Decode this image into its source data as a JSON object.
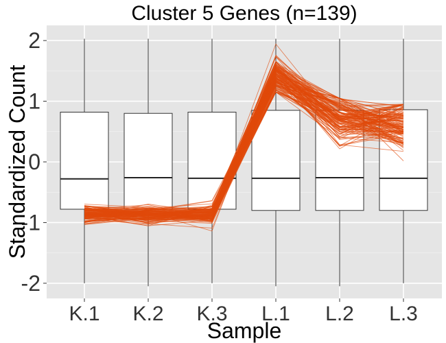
{
  "chart_data": {
    "type": "boxplot-with-lines",
    "title": "Cluster 5 Genes (n=139)",
    "xlabel": "Sample",
    "ylabel": "Standardized Count",
    "categories": [
      "K.1",
      "K.2",
      "K.3",
      "L.1",
      "L.2",
      "L.3"
    ],
    "ylim": [
      -2.25,
      2.25
    ],
    "yticks": [
      -2,
      -1,
      0,
      1,
      2
    ],
    "ytick_labels": [
      "-2",
      "-1",
      "0",
      "1",
      "2"
    ],
    "grid": true,
    "boxes": [
      {
        "category": "K.1",
        "min": -2.0,
        "q1": -0.78,
        "median": -0.28,
        "q3": 0.82,
        "max": 2.03
      },
      {
        "category": "K.2",
        "min": -2.05,
        "q1": -0.78,
        "median": -0.26,
        "q3": 0.8,
        "max": 2.03
      },
      {
        "category": "K.3",
        "min": -2.0,
        "q1": -0.78,
        "median": -0.27,
        "q3": 0.82,
        "max": 2.03
      },
      {
        "category": "L.1",
        "min": -2.05,
        "q1": -0.8,
        "median": -0.27,
        "q3": 0.85,
        "max": 2.03
      },
      {
        "category": "L.2",
        "min": -2.05,
        "q1": -0.8,
        "median": -0.26,
        "q3": 0.85,
        "max": 2.03
      },
      {
        "category": "L.3",
        "min": -2.0,
        "q1": -0.8,
        "median": -0.27,
        "q3": 0.86,
        "max": 2.03
      }
    ],
    "gene_lines": {
      "count": 139,
      "color": "#e04a0a",
      "mean_profile": [
        -0.86,
        -0.87,
        -0.86,
        1.42,
        0.72,
        0.58
      ],
      "spread": [
        0.08,
        0.07,
        0.08,
        0.16,
        0.22,
        0.22
      ],
      "range_min": [
        -1.15,
        -1.12,
        -1.18,
        1.15,
        -0.4,
        0.0
      ],
      "range_max": [
        -0.5,
        -0.6,
        -0.58,
        1.95,
        1.05,
        0.95
      ]
    }
  }
}
